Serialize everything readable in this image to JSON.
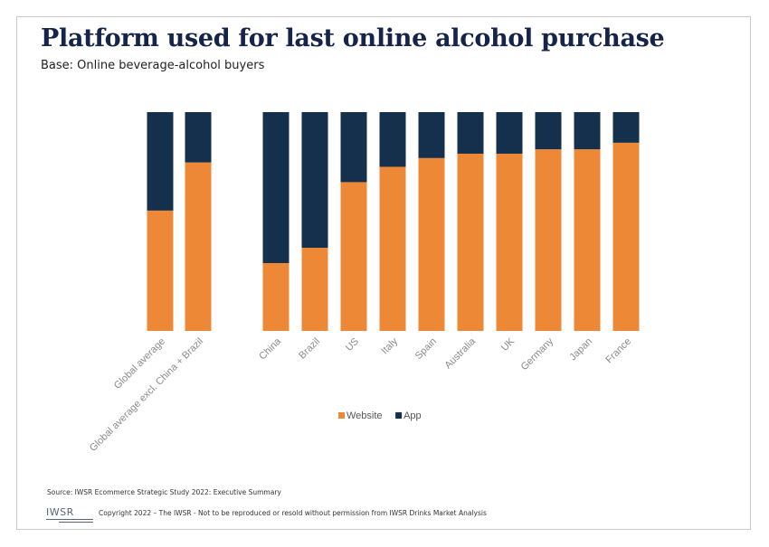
{
  "header": {
    "title": "Platform used for last online alcohol purchase",
    "subtitle": "Base: Online beverage-alcohol buyers"
  },
  "footer": {
    "source": "Source: IWSR Ecommerce Strategic Study 2022: Executive Summary",
    "logo_text": "IWSR",
    "copyright": "Copyright 2022 – The IWSR - Not to be reproduced or resold without permission from IWSR Drinks Market Analysis"
  },
  "colors": {
    "website": "#ed8936",
    "app": "#14304d"
  },
  "chart_data": {
    "type": "bar",
    "stacked": true,
    "percent_stacked": true,
    "categories": [
      "Global average",
      "Global average excl. China + Brazil",
      "China",
      "Brazil",
      "US",
      "Italy",
      "Spain",
      "Australia",
      "UK",
      "Germany",
      "Japan",
      "France"
    ],
    "series": [
      {
        "name": "Website",
        "values": [
          55,
          77,
          31,
          38,
          68,
          75,
          79,
          81,
          81,
          83,
          83,
          86
        ]
      },
      {
        "name": "App",
        "values": [
          45,
          23,
          69,
          62,
          32,
          25,
          21,
          19,
          19,
          17,
          17,
          14
        ]
      }
    ],
    "ylim": [
      0,
      100
    ],
    "grid": false,
    "legend": "bottom-center"
  }
}
